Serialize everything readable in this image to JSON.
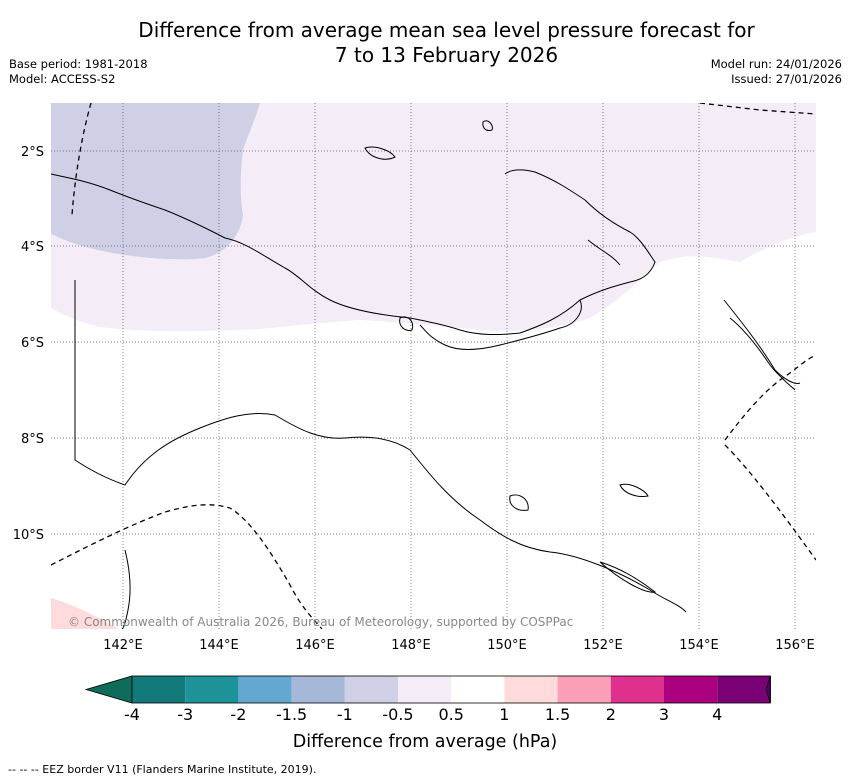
{
  "title_line1": "Difference from average mean sea level pressure forecast for",
  "title_line2": "7 to 13 February 2026",
  "base_period": "Base period: 1981-2018",
  "model": "Model: ACCESS-S2",
  "model_run": "Model run: 24/01/2026",
  "issued": "Issued: 27/01/2026",
  "credit": "© Commonwealth of Australia 2026, Bureau of Meteorology, supported by COSPPac",
  "lat_labels": [
    "2°S",
    "4°S",
    "6°S",
    "8°S",
    "10°S"
  ],
  "lon_labels": [
    "142°E",
    "144°E",
    "146°E",
    "148°E",
    "150°E",
    "152°E",
    "154°E",
    "156°E"
  ],
  "colorbar": {
    "title": "Difference from average (hPa)",
    "tick_labels": [
      "-4",
      "-3",
      "-2",
      "-1.5",
      "-1",
      "-0.5",
      "0.5",
      "1",
      "1.5",
      "2",
      "3",
      "4"
    ],
    "colors": [
      "#127a7a",
      "#1e9299",
      "#64a8d2",
      "#a6b8d8",
      "#cfcfe6",
      "#f4ecf6",
      "#ffffff",
      "#ffdbdb",
      "#f99fb8",
      "#e0308e",
      "#ab0080",
      "#7a0076"
    ],
    "under_color": "#0f6b5a",
    "over_color": "#4b0062"
  },
  "footnote": "--  --  -- EEZ border V11 (Flanders Marine Institute, 2019).",
  "chart_data": {
    "type": "map",
    "variable": "Difference from average mean sea level pressure",
    "units": "hPa",
    "lon_range": [
      140.5,
      156.5
    ],
    "lat_range": [
      -12,
      -1
    ],
    "regions": [
      {
        "area": "north-west",
        "category": "-1.5 to -1"
      },
      {
        "area": "northern band",
        "category": "-1 to -0.5"
      },
      {
        "area": "south-west corner",
        "category": "0.5 to 1"
      },
      {
        "area": "rest of domain",
        "category": "-0.5 to 0.5"
      }
    ]
  }
}
